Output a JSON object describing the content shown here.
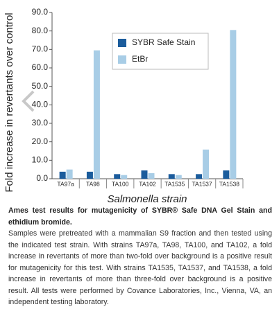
{
  "chart_data": {
    "type": "bar",
    "ylabel": "Fold increase in revertants over control",
    "xlabel": "Salmonella strain",
    "categories": [
      "TA97a",
      "TA98",
      "TA100",
      "TA102",
      "TA1535",
      "TA1537",
      "TA1538"
    ],
    "series": [
      {
        "name": "SYBR Safe Stain",
        "color": "#1b5c9c",
        "values": [
          3.8,
          3.8,
          2.5,
          4.5,
          2.5,
          2.5,
          4.5
        ]
      },
      {
        "name": "EtBr",
        "color": "#a8cde6",
        "values": [
          5.0,
          69.5,
          2.0,
          3.0,
          2.0,
          15.8,
          80.5
        ]
      }
    ],
    "ylim": [
      0,
      90
    ],
    "yticks": [
      {
        "value": 0,
        "label": "0.0"
      },
      {
        "value": 10,
        "label": "10.0"
      },
      {
        "value": 20,
        "label": "20.0"
      },
      {
        "value": 30,
        "label": "30.0"
      },
      {
        "value": 40,
        "label": "40.0"
      },
      {
        "value": 50,
        "label": "50.0"
      },
      {
        "value": 60,
        "label": "60.0"
      },
      {
        "value": 70,
        "label": "70.0"
      },
      {
        "value": 80,
        "label": "80.0"
      },
      {
        "value": 90,
        "label": "90.0"
      }
    ],
    "legend": "upper center"
  },
  "caption": {
    "title": "Ames test results for mutagenicity of SYBR® Safe DNA Gel Stain and ethidium bromide.",
    "body": "Samples were pretreated with a mammalian S9 fraction and then tested using the indicated test strain. With strains TA97a, TA98, TA100, and TA102, a fold increase in revertants of more than two-fold over background is a positive result for mutagenicity for this test. With strains TA1535, TA1537, and TA1538, a fold increase in revertants of more than three-fold over background is a positive result. All tests were performed by Covance Laboratories, Inc., Vienna, VA, an independent testing laboratory."
  }
}
